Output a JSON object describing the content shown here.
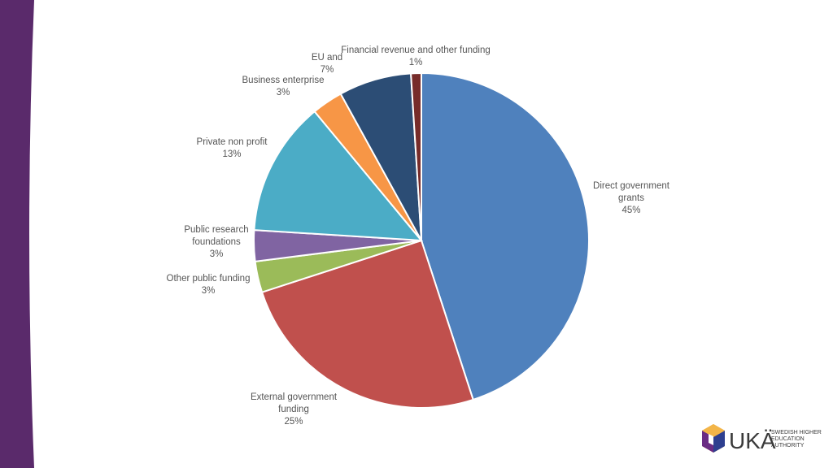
{
  "chart_data": {
    "type": "pie",
    "title": "",
    "slices": [
      {
        "label": "Direct government grants",
        "value": 45,
        "pct_label": "45%",
        "color": "#4f81bd"
      },
      {
        "label": "External government funding",
        "value": 25,
        "pct_label": "25%",
        "color": "#c0504d"
      },
      {
        "label": "Other public funding",
        "value": 3,
        "pct_label": "3%",
        "color": "#9bbb59"
      },
      {
        "label": "Public research foundations",
        "value": 3,
        "pct_label": "3%",
        "color": "#8064a2"
      },
      {
        "label": "Private non profit",
        "value": 13,
        "pct_label": "13%",
        "color": "#4bacc6"
      },
      {
        "label": "Business enterprise",
        "value": 3,
        "pct_label": "3%",
        "color": "#f79646"
      },
      {
        "label": "EU and",
        "value": 7,
        "pct_label": "7%",
        "color": "#2c4d75"
      },
      {
        "label": "Financial revenue and other funding",
        "value": 1,
        "pct_label": "1%",
        "color": "#772c2a"
      }
    ]
  },
  "brand": {
    "accent_color": "#5a2a6b",
    "logo_letters": "UKÄ",
    "logo_line1": "SWEDISH HIGHER",
    "logo_line2": "EDUCATION",
    "logo_line3": "AUTHORITY"
  }
}
